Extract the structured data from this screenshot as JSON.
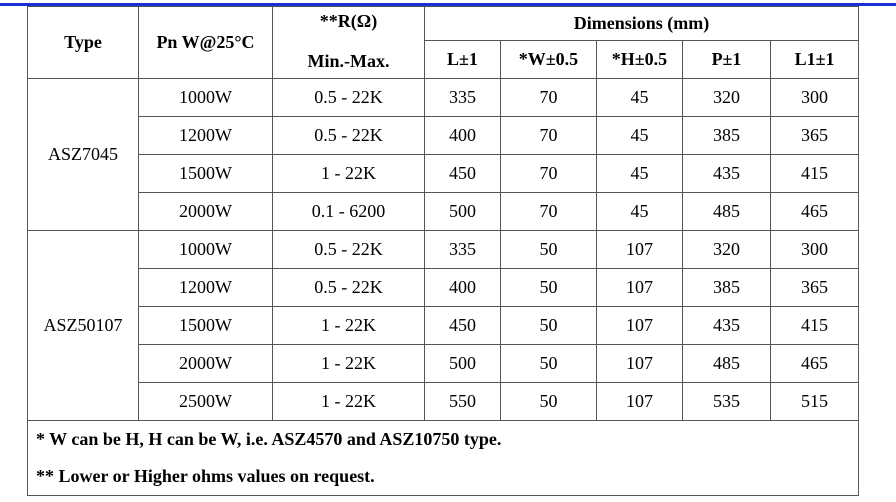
{
  "header": {
    "type": "Type",
    "pn": "Pn W@25°C",
    "r_top": "**R(Ω)",
    "r_sub": "Min.-Max.",
    "dimensions": "Dimensions (mm)",
    "cols": [
      "L±1",
      "*W±0.5",
      "*H±0.5",
      "P±1",
      "L1±1"
    ]
  },
  "groups": [
    {
      "type": "ASZ7045",
      "rows": [
        {
          "pn": "1000W",
          "r": "0.5 - 22K",
          "L": "335",
          "W": "70",
          "H": "45",
          "P": "320",
          "L1": "300"
        },
        {
          "pn": "1200W",
          "r": "0.5 - 22K",
          "L": "400",
          "W": "70",
          "H": "45",
          "P": "385",
          "L1": "365"
        },
        {
          "pn": "1500W",
          "r": "1 - 22K",
          "L": "450",
          "W": "70",
          "H": "45",
          "P": "435",
          "L1": "415"
        },
        {
          "pn": "2000W",
          "r": "0.1 - 6200",
          "L": "500",
          "W": "70",
          "H": "45",
          "P": "485",
          "L1": "465"
        }
      ]
    },
    {
      "type": "ASZ50107",
      "rows": [
        {
          "pn": "1000W",
          "r": "0.5 - 22K",
          "L": "335",
          "W": "50",
          "H": "107",
          "P": "320",
          "L1": "300"
        },
        {
          "pn": "1200W",
          "r": "0.5 - 22K",
          "L": "400",
          "W": "50",
          "H": "107",
          "P": "385",
          "L1": "365"
        },
        {
          "pn": "1500W",
          "r": "1 - 22K",
          "L": "450",
          "W": "50",
          "H": "107",
          "P": "435",
          "L1": "415"
        },
        {
          "pn": "2000W",
          "r": "1 - 22K",
          "L": "500",
          "W": "50",
          "H": "107",
          "P": "485",
          "L1": "465"
        },
        {
          "pn": "2500W",
          "r": "1 - 22K",
          "L": "550",
          "W": "50",
          "H": "107",
          "P": "535",
          "L1": "515"
        }
      ]
    }
  ],
  "notes": [
    "* W can be H, H can be W, i.e. ASZ4570 and ASZ10750 type.",
    "** Lower or Higher ohms values on request."
  ]
}
